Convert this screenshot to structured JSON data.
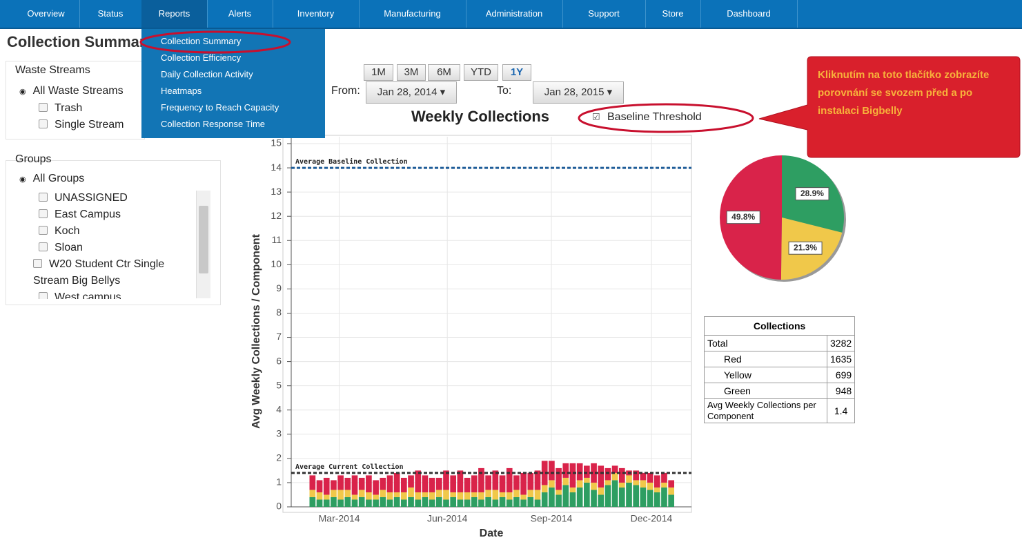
{
  "nav": [
    "Overview",
    "Status",
    "Reports",
    "Alerts",
    "Inventory",
    "Manufacturing",
    "Administration",
    "Support",
    "Store",
    "Dashboard"
  ],
  "page_title": "Collection Summary",
  "reports_menu": [
    "Collection Summary",
    "Collection Efficiency",
    "Daily Collection Activity",
    "Heatmaps",
    "Frequency to Reach Capacity",
    "Collection Response Time"
  ],
  "waste_streams": {
    "title": "Waste Streams",
    "all": "All Waste Streams",
    "items": [
      "Trash",
      "Single Stream"
    ]
  },
  "groups": {
    "title": "Groups",
    "all": "All Groups",
    "items": [
      "UNASSIGNED",
      "East Campus",
      "Koch",
      "Sloan",
      "W20 Student Ctr Single Stream Big Bellys",
      "West campus"
    ]
  },
  "range_buttons": [
    "1M",
    "3M",
    "6M",
    "YTD",
    "1Y"
  ],
  "from": {
    "label": "From:",
    "value": "Jan 28, 2014"
  },
  "to": {
    "label": "To:",
    "value": "Jan 28, 2015"
  },
  "baseline_toggle": "Baseline Threshold",
  "callout": "Kliknutím na toto tlačítko zobrazíte porovnání se svozem před a po instalaci Bigbelly",
  "chart_data": [
    {
      "type": "bar",
      "stacked": true,
      "title": "Weekly Collections",
      "y_label": "Avg Weekly Collections / Component",
      "x_label": "Date",
      "categories": [
        null,
        null,
        null,
        null,
        null,
        null,
        null,
        null,
        null,
        null,
        null,
        null,
        null,
        null,
        null,
        null,
        null,
        null,
        null,
        null,
        null,
        null,
        null,
        null,
        null,
        null,
        null,
        null,
        null,
        null,
        null,
        null,
        null,
        null,
        null,
        null,
        null,
        null,
        null,
        null,
        null,
        null,
        null,
        null,
        null,
        null,
        null,
        null,
        null,
        null,
        null,
        null
      ],
      "xticks": [
        "Mar-2014",
        "Jun-2014",
        "Sep-2014",
        "Dec-2014"
      ],
      "ylim": [
        0,
        15
      ],
      "yticks": [
        0,
        1,
        2,
        3,
        4,
        5,
        6,
        7,
        8,
        9,
        10,
        11,
        12,
        13,
        14,
        15
      ],
      "grid": true,
      "series": [
        {
          "name": "Green",
          "color": "#2e9e62",
          "values": [
            0.4,
            0.3,
            0.3,
            0.4,
            0.3,
            0.4,
            0.3,
            0.4,
            0.3,
            0.3,
            0.4,
            0.3,
            0.4,
            0.3,
            0.4,
            0.3,
            0.4,
            0.3,
            0.4,
            0.3,
            0.4,
            0.3,
            0.3,
            0.4,
            0.3,
            0.4,
            0.3,
            0.4,
            0.3,
            0.4,
            0.3,
            0.4,
            0.3,
            0.6,
            0.8,
            0.5,
            0.9,
            0.6,
            0.8,
            1.0,
            0.7,
            0.5,
            0.9,
            1.1,
            0.8,
            1.0,
            0.9,
            0.8,
            0.7,
            0.6,
            0.8,
            0.5
          ]
        },
        {
          "name": "Yellow",
          "color": "#f0c84a",
          "values": [
            0.3,
            0.3,
            0.2,
            0.3,
            0.4,
            0.3,
            0.2,
            0.3,
            0.3,
            0.2,
            0.3,
            0.3,
            0.2,
            0.3,
            0.4,
            0.3,
            0.2,
            0.3,
            0.3,
            0.4,
            0.2,
            0.3,
            0.3,
            0.2,
            0.3,
            0.3,
            0.4,
            0.2,
            0.3,
            0.3,
            0.2,
            0.3,
            0.4,
            0.3,
            0.3,
            0.2,
            0.3,
            0.2,
            0.3,
            0.2,
            0.3,
            0.3,
            0.2,
            0.3,
            0.2,
            0.3,
            0.2,
            0.3,
            0.3,
            0.2,
            0.2,
            0.3
          ]
        },
        {
          "name": "Red",
          "color": "#d9234a",
          "values": [
            0.6,
            0.5,
            0.7,
            0.4,
            0.6,
            0.5,
            0.8,
            0.5,
            0.7,
            0.6,
            0.5,
            0.7,
            0.8,
            0.6,
            0.5,
            0.9,
            0.7,
            0.6,
            0.5,
            0.8,
            0.7,
            0.9,
            0.6,
            0.7,
            1.0,
            0.6,
            0.8,
            0.7,
            1.0,
            0.6,
            0.9,
            0.7,
            0.8,
            1.0,
            0.8,
            0.9,
            0.6,
            1.0,
            0.7,
            0.5,
            0.8,
            0.9,
            0.5,
            0.3,
            0.6,
            0.2,
            0.4,
            0.3,
            0.4,
            0.5,
            0.4,
            0.3
          ]
        }
      ],
      "reference_lines": [
        {
          "label": "Average Baseline Collection",
          "value": 14,
          "color": "#1f5d99"
        },
        {
          "label": "Average Current Collection",
          "value": 1.4,
          "color": "#333333"
        }
      ]
    },
    {
      "type": "pie",
      "values": [
        28.9,
        21.3,
        49.8
      ],
      "value_labels": [
        "28.9%",
        "21.3%",
        "49.8%"
      ],
      "colors": [
        "#2e9e62",
        "#f0c84a",
        "#d9234a"
      ]
    }
  ],
  "table": {
    "title": "Collections",
    "rows": [
      [
        "Total",
        "3282"
      ],
      [
        "Red",
        "1635"
      ],
      [
        "Yellow",
        "699"
      ],
      [
        "Green",
        "948"
      ],
      [
        "Avg Weekly Collections per Component",
        "1.4"
      ]
    ]
  }
}
